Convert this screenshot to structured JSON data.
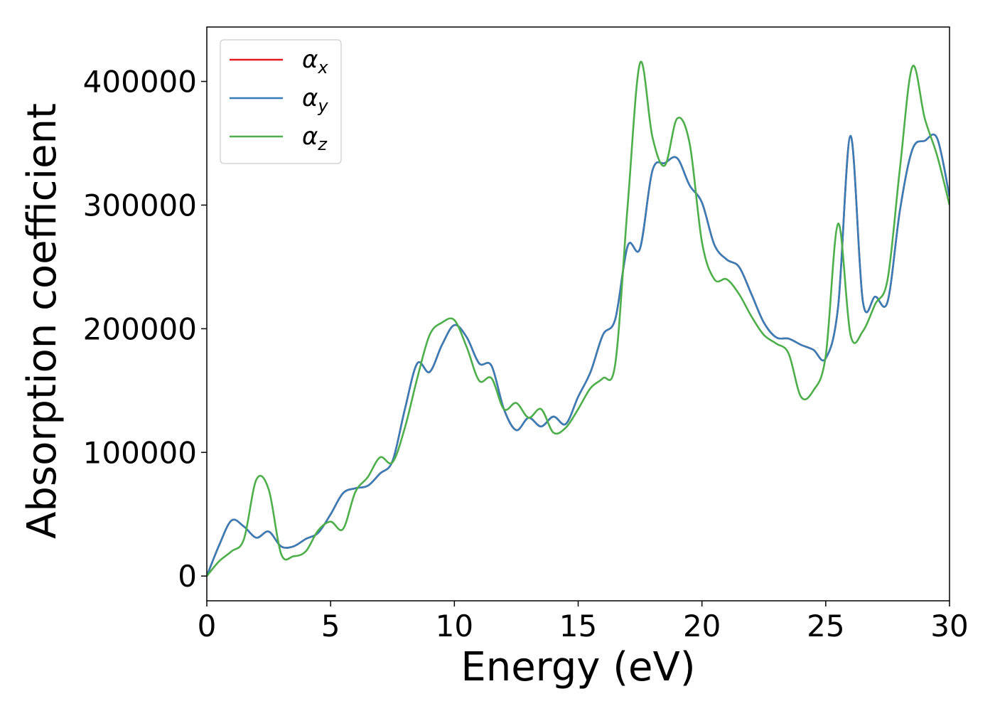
{
  "chart_data": {
    "type": "line",
    "xlabel": "Energy (eV)",
    "ylabel": "Absorption coefficient",
    "xlim": [
      0,
      30
    ],
    "ylim": [
      -20000,
      444000
    ],
    "xticks": [
      0,
      5,
      10,
      15,
      20,
      25,
      30
    ],
    "yticks": [
      0,
      100000,
      200000,
      300000,
      400000
    ],
    "grid": false,
    "legend_position": "top-left",
    "x": [
      0,
      0.5,
      1,
      1.5,
      2,
      2.5,
      3,
      3.5,
      4,
      4.5,
      5,
      5.5,
      6,
      6.5,
      7,
      7.5,
      8,
      8.5,
      9,
      9.5,
      10,
      10.5,
      11,
      11.5,
      12,
      12.5,
      13,
      13.5,
      14,
      14.5,
      15,
      15.5,
      16,
      16.5,
      17,
      17.5,
      18,
      18.5,
      19,
      19.5,
      20,
      20.5,
      21,
      21.5,
      22,
      22.5,
      23,
      23.5,
      24,
      24.5,
      25,
      25.5,
      26,
      26.5,
      27,
      27.5,
      28,
      28.5,
      29,
      29.5,
      30
    ],
    "series": [
      {
        "name": "α",
        "subscript": "x",
        "color": "#e41a1c",
        "values": [
          0,
          25000,
          45000,
          40000,
          31000,
          36000,
          24000,
          24000,
          30000,
          35000,
          50000,
          67000,
          71000,
          73000,
          83000,
          93000,
          135000,
          172000,
          165000,
          187000,
          203000,
          193000,
          172000,
          170000,
          135000,
          118000,
          128000,
          121000,
          129000,
          123000,
          145000,
          165000,
          195000,
          208000,
          267000,
          265000,
          328000,
          334000,
          338000,
          316000,
          302000,
          268000,
          256000,
          250000,
          228000,
          205000,
          193000,
          192000,
          187000,
          183000,
          176000,
          218000,
          356000,
          222000,
          226000,
          222000,
          296000,
          345000,
          352000,
          354000,
          307000
        ]
      },
      {
        "name": "α",
        "subscript": "y",
        "color": "#377eb8",
        "values": [
          0,
          25000,
          45000,
          40000,
          31000,
          36000,
          24000,
          24000,
          30000,
          35000,
          50000,
          67000,
          71000,
          73000,
          83000,
          93000,
          135000,
          172000,
          165000,
          187000,
          203000,
          193000,
          172000,
          170000,
          135000,
          118000,
          128000,
          121000,
          129000,
          123000,
          145000,
          165000,
          195000,
          208000,
          267000,
          265000,
          328000,
          334000,
          338000,
          316000,
          302000,
          268000,
          256000,
          250000,
          228000,
          205000,
          193000,
          192000,
          187000,
          183000,
          176000,
          218000,
          356000,
          222000,
          226000,
          222000,
          296000,
          345000,
          352000,
          354000,
          307000
        ]
      },
      {
        "name": "α",
        "subscript": "z",
        "color": "#4daf4a",
        "values": [
          0,
          12000,
          20000,
          30000,
          78000,
          70000,
          18000,
          16000,
          20000,
          37000,
          44000,
          38000,
          68000,
          80000,
          96000,
          92000,
          120000,
          160000,
          195000,
          205000,
          207000,
          185000,
          158000,
          160000,
          135000,
          140000,
          128000,
          135000,
          116000,
          120000,
          135000,
          152000,
          160000,
          172000,
          300000,
          415000,
          355000,
          332000,
          370000,
          350000,
          270000,
          240000,
          240000,
          228000,
          210000,
          195000,
          188000,
          180000,
          145000,
          150000,
          178000,
          285000,
          195000,
          198000,
          220000,
          240000,
          330000,
          412000,
          370000,
          340000,
          300000
        ]
      }
    ]
  }
}
